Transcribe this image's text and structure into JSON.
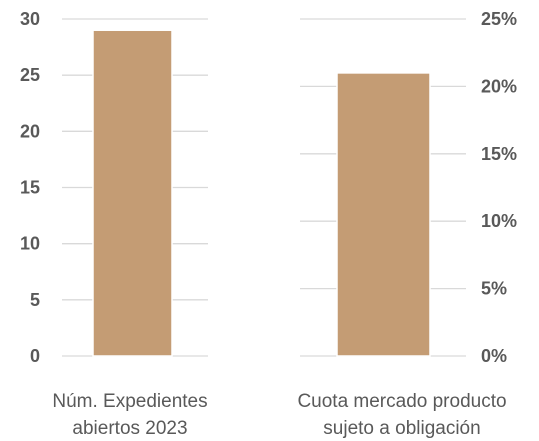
{
  "chart_data": [
    {
      "type": "bar",
      "categories": [
        "Núm. Expedientes abiertos 2023"
      ],
      "category_lines": [
        "Núm. Expedientes",
        "abiertos 2023"
      ],
      "values": [
        29
      ],
      "ylim": [
        0,
        30
      ],
      "yticks": [
        "0",
        "5",
        "10",
        "15",
        "20",
        "25",
        "30"
      ],
      "ytick_values": [
        0,
        5,
        10,
        15,
        20,
        25,
        30
      ],
      "axis_side": "left",
      "grid": true,
      "bar_color": "#c49c74",
      "title": "",
      "xlabel": "",
      "ylabel": ""
    },
    {
      "type": "bar",
      "categories": [
        "Cuota mercado producto sujeto a obligación"
      ],
      "category_lines": [
        "Cuota mercado producto",
        "sujeto a obligación"
      ],
      "values": [
        21
      ],
      "ylim": [
        0,
        25
      ],
      "yticks": [
        "0%",
        "5%",
        "10%",
        "15%",
        "20%",
        "25%"
      ],
      "ytick_values": [
        0,
        5,
        10,
        15,
        20,
        25
      ],
      "axis_side": "right",
      "grid": true,
      "bar_color": "#c49c74",
      "title": "",
      "xlabel": "",
      "ylabel": ""
    }
  ]
}
